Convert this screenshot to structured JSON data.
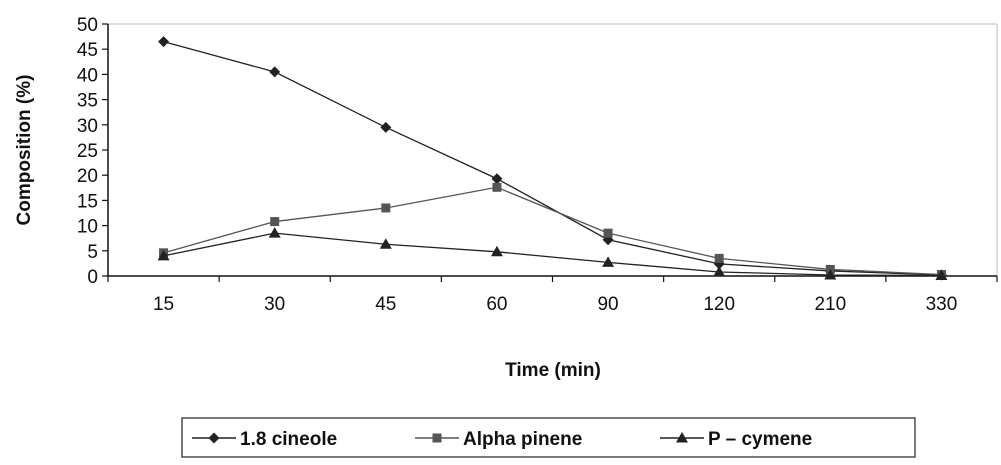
{
  "chart_data": {
    "type": "line",
    "title": "",
    "xlabel": "Time (min)",
    "ylabel": "Composition (%)",
    "categories": [
      "15",
      "30",
      "45",
      "60",
      "90",
      "120",
      "210",
      "330"
    ],
    "ylim": [
      0,
      50
    ],
    "yticks": [
      "0",
      "5",
      "10",
      "15",
      "20",
      "25",
      "30",
      "35",
      "40",
      "45",
      "50"
    ],
    "grid": false,
    "legend_position": "bottom",
    "series": [
      {
        "name": "1.8 cineole",
        "marker": "diamond",
        "color": "#222222",
        "values": [
          46.5,
          40.5,
          29.5,
          19.3,
          7.2,
          2.4,
          1.0,
          0.2
        ]
      },
      {
        "name": "Alpha pinene",
        "marker": "square",
        "color": "#555555",
        "values": [
          4.6,
          10.8,
          13.5,
          17.6,
          8.5,
          3.5,
          1.3,
          0.3
        ]
      },
      {
        "name": "P – cymene",
        "marker": "triangle",
        "color": "#222222",
        "values": [
          4.0,
          8.5,
          6.3,
          4.8,
          2.7,
          0.8,
          0.2,
          0.1
        ]
      }
    ]
  }
}
